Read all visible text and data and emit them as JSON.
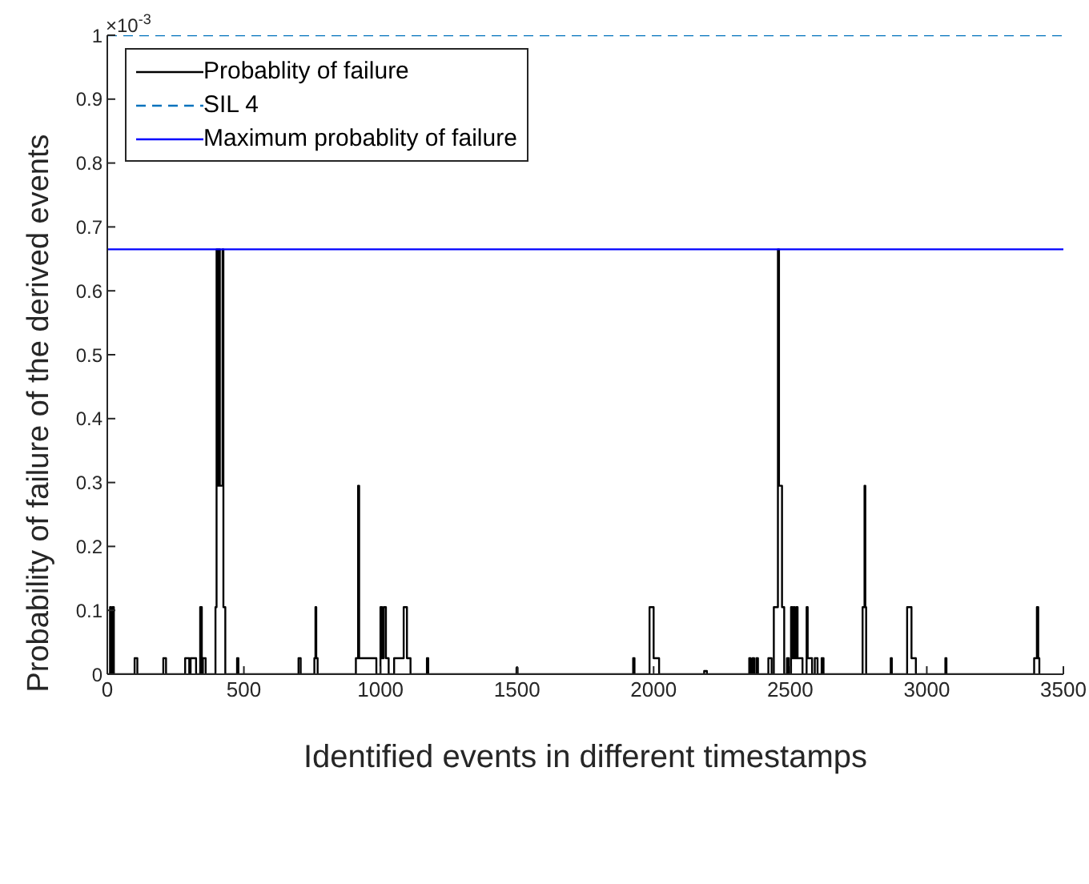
{
  "chart_data": {
    "type": "step",
    "xlabel": "Identified events in different timestamps",
    "ylabel": "Probability of failure of the derived events",
    "annotations": [
      "×10$^{-3}$"
    ],
    "xlim": [
      0,
      3500
    ],
    "xticks": [
      0,
      500,
      1000,
      1500,
      2000,
      2500,
      3000,
      3500
    ],
    "ylim": [
      0,
      1
    ],
    "yticks": [
      0,
      0.1,
      0.2,
      0.3,
      0.4,
      0.5,
      0.6,
      0.7,
      0.8,
      0.9,
      1
    ],
    "grid": false,
    "legend": "top left",
    "marker": "none",
    "series": [
      {
        "name": "Probablity of failure",
        "color": "#000000",
        "line_style": "solid",
        "x": [
          0,
          10,
          14,
          18,
          24,
          100,
          110,
          205,
          215,
          285,
          300,
          305,
          325,
          340,
          346,
          350,
          360,
          396,
          400,
          405,
          408,
          412,
          422,
          425,
          432,
          475,
          480,
          700,
          708,
          758,
          762,
          765,
          770,
          910,
          918,
          922,
          985,
          1000,
          1006,
          1012,
          1020,
          1030,
          1050,
          1085,
          1097,
          1110,
          1170,
          1175,
          1498,
          1502,
          1925,
          1930,
          1985,
          2000,
          2020,
          2185,
          2195,
          2350,
          2355,
          2362,
          2368,
          2376,
          2382,
          2420,
          2432,
          2440,
          2455,
          2459,
          2470,
          2478,
          2488,
          2495,
          2503,
          2508,
          2512,
          2516,
          2522,
          2527,
          2545,
          2560,
          2564,
          2580,
          2590,
          2600,
          2615,
          2622,
          2765,
          2772,
          2775,
          2778,
          2868,
          2872,
          2928,
          2944,
          2960,
          3068,
          3072,
          3393,
          3403,
          3408,
          3412
        ],
        "values": [
          0,
          0.105,
          0,
          0.105,
          0,
          0.025,
          0,
          0.025,
          0,
          0.025,
          0,
          0.025,
          0,
          0.105,
          0,
          0.025,
          0,
          0.105,
          0.665,
          0.295,
          0.665,
          0.295,
          0.665,
          0.105,
          0,
          0.025,
          0,
          0.025,
          0,
          0.025,
          0.105,
          0.025,
          0,
          0.025,
          0.295,
          0.025,
          0,
          0.105,
          0.025,
          0.105,
          0.025,
          0,
          0.025,
          0.105,
          0.025,
          0,
          0.025,
          0,
          0.01,
          0,
          0.025,
          0,
          0.105,
          0.025,
          0,
          0.005,
          0,
          0.025,
          0,
          0.025,
          0,
          0.025,
          0,
          0.025,
          0,
          0.105,
          0.665,
          0.295,
          0.105,
          0,
          0.025,
          0,
          0.105,
          0.025,
          0.105,
          0.025,
          0.105,
          0.025,
          0,
          0.105,
          0.025,
          0,
          0.025,
          0,
          0.025,
          0,
          0.105,
          0.295,
          0.105,
          0,
          0.025,
          0,
          0.105,
          0.025,
          0,
          0.025,
          0,
          0.025,
          0.105,
          0.025,
          0
        ]
      },
      {
        "name": "SIL 4",
        "type": "line",
        "color": "#0072bd",
        "line_style": "dashed",
        "x": [
          0,
          3500
        ],
        "values": [
          1,
          1
        ]
      },
      {
        "name": "Maximum probablity of failure",
        "type": "line",
        "color": "#0000ff",
        "line_style": "solid",
        "x": [
          0,
          3500
        ],
        "values": [
          0.665,
          0.665
        ]
      }
    ]
  }
}
